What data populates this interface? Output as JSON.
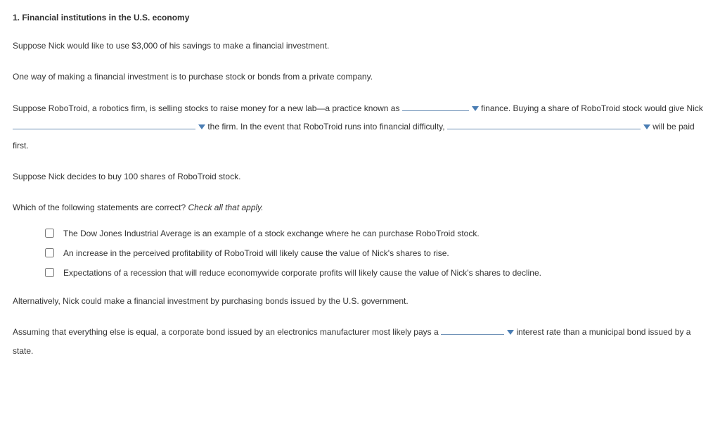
{
  "heading": "1. Financial institutions in the U.S. economy",
  "p1": "Suppose Nick would like to use $3,000 of his savings to make a financial investment.",
  "p2": "One way of making a financial investment is to purchase stock or bonds from a private company.",
  "fill1": {
    "pre": "Suppose RoboTroid, a robotics firm, is selling stocks to raise money for a new lab—a practice known as ",
    "dd1_width": 95,
    "after_dd1": " finance. Buying a share of RoboTroid stock would give Nick ",
    "dd2_width": 260,
    "after_dd2": " the firm. In the event that RoboTroid runs into financial difficulty, ",
    "dd3_width": 275,
    "after_dd3": " will be paid first."
  },
  "p4": "Suppose Nick decides to buy 100 shares of RoboTroid stock.",
  "p5a": "Which of the following statements are correct? ",
  "p5b": "Check all that apply.",
  "options": [
    "The Dow Jones Industrial Average is an example of a stock exchange where he can purchase RoboTroid stock.",
    "An increase in the perceived profitability of RoboTroid will likely cause the value of Nick's shares to rise.",
    "Expectations of a recession that will reduce economywide corporate profits will likely cause the value of Nick's shares to decline."
  ],
  "p6": "Alternatively, Nick could make a financial investment by purchasing bonds issued by the U.S. government.",
  "fill2": {
    "pre": "Assuming that everything else is equal, a corporate bond issued by an electronics manufacturer most likely pays a ",
    "dd_width": 90,
    "after": " interest rate than a municipal bond issued by a state."
  },
  "caret_color": "#4a7db3",
  "line_color": "#6b8fb5"
}
